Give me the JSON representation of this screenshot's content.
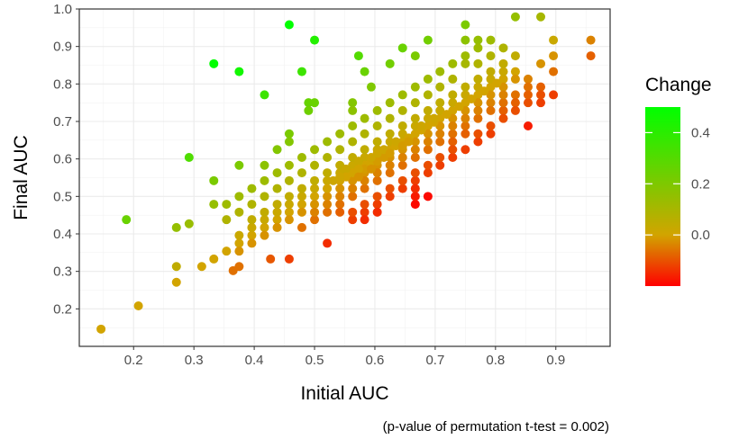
{
  "chart_data": {
    "type": "scatter",
    "title": "",
    "xlabel": "Initial AUC",
    "ylabel": "Final AUC",
    "caption": "(p-value of permutation t-test = 0.002)",
    "xlim": [
      0.11,
      0.99
    ],
    "ylim": [
      0.1,
      1.0
    ],
    "xticks": [
      0.2,
      0.3,
      0.4,
      0.5,
      0.6,
      0.7,
      0.8,
      0.9
    ],
    "yticks": [
      0.2,
      0.3,
      0.4,
      0.5,
      0.6,
      0.7,
      0.8,
      0.9,
      1.0
    ],
    "xtick_labels": [
      "0.2",
      "0.3",
      "0.4",
      "0.5",
      "0.6",
      "0.7",
      "0.8",
      "0.9"
    ],
    "ytick_labels": [
      "0.2",
      "0.3",
      "0.4",
      "0.5",
      "0.6",
      "0.7",
      "0.8",
      "0.9",
      "1.0"
    ],
    "grid": true,
    "legend": {
      "title": "Change",
      "position": "right",
      "min": -0.2,
      "max": 0.5,
      "ticks": [
        0.0,
        0.2,
        0.4
      ],
      "tick_labels": [
        "0.0",
        "0.2",
        "0.4"
      ],
      "colors": {
        "low": "#ff0000",
        "mid": "#d2a400",
        "high": "#00ff00"
      }
    },
    "points": [
      [
        0.146,
        0.146
      ],
      [
        0.208,
        0.208
      ],
      [
        0.271,
        0.271
      ],
      [
        0.271,
        0.313
      ],
      [
        0.313,
        0.313
      ],
      [
        0.333,
        0.333
      ],
      [
        0.375,
        0.313
      ],
      [
        0.365,
        0.302
      ],
      [
        0.427,
        0.333
      ],
      [
        0.458,
        0.333
      ],
      [
        0.521,
        0.375
      ],
      [
        0.188,
        0.438
      ],
      [
        0.271,
        0.417
      ],
      [
        0.292,
        0.427
      ],
      [
        0.292,
        0.604
      ],
      [
        0.333,
        0.854
      ],
      [
        0.375,
        0.833
      ],
      [
        0.417,
        0.771
      ],
      [
        0.458,
        0.958
      ],
      [
        0.5,
        0.917
      ],
      [
        0.479,
        0.833
      ],
      [
        0.49,
        0.75
      ],
      [
        0.5,
        0.75
      ],
      [
        0.49,
        0.729
      ],
      [
        0.333,
        0.542
      ],
      [
        0.375,
        0.583
      ],
      [
        0.417,
        0.583
      ],
      [
        0.438,
        0.625
      ],
      [
        0.458,
        0.646
      ],
      [
        0.458,
        0.667
      ],
      [
        0.563,
        0.75
      ],
      [
        0.563,
        0.729
      ],
      [
        0.573,
        0.875
      ],
      [
        0.583,
        0.833
      ],
      [
        0.594,
        0.792
      ],
      [
        0.625,
        0.854
      ],
      [
        0.646,
        0.896
      ],
      [
        0.667,
        0.875
      ],
      [
        0.688,
        0.917
      ],
      [
        0.75,
        0.958
      ],
      [
        0.75,
        0.917
      ],
      [
        0.771,
        0.917
      ],
      [
        0.833,
        0.979
      ],
      [
        0.875,
        0.979
      ],
      [
        0.896,
        0.917
      ],
      [
        0.958,
        0.917
      ],
      [
        0.958,
        0.875
      ],
      [
        0.896,
        0.833
      ],
      [
        0.896,
        0.771
      ],
      [
        0.875,
        0.792
      ],
      [
        0.875,
        0.75
      ],
      [
        0.854,
        0.75
      ],
      [
        0.854,
        0.688
      ],
      [
        0.813,
        0.729
      ],
      [
        0.792,
        0.75
      ],
      [
        0.771,
        0.771
      ],
      [
        0.75,
        0.75
      ],
      [
        0.729,
        0.729
      ],
      [
        0.708,
        0.708
      ],
      [
        0.688,
        0.688
      ],
      [
        0.667,
        0.667
      ],
      [
        0.646,
        0.646
      ],
      [
        0.625,
        0.625
      ],
      [
        0.604,
        0.604
      ],
      [
        0.583,
        0.583
      ],
      [
        0.563,
        0.563
      ],
      [
        0.542,
        0.542
      ],
      [
        0.521,
        0.521
      ],
      [
        0.5,
        0.5
      ],
      [
        0.479,
        0.479
      ],
      [
        0.458,
        0.458
      ],
      [
        0.438,
        0.438
      ],
      [
        0.417,
        0.417
      ],
      [
        0.396,
        0.396
      ],
      [
        0.375,
        0.375
      ],
      [
        0.354,
        0.354
      ],
      [
        0.333,
        0.479
      ],
      [
        0.354,
        0.479
      ],
      [
        0.375,
        0.5
      ],
      [
        0.396,
        0.521
      ],
      [
        0.417,
        0.542
      ],
      [
        0.438,
        0.563
      ],
      [
        0.458,
        0.583
      ],
      [
        0.479,
        0.604
      ],
      [
        0.5,
        0.625
      ],
      [
        0.521,
        0.646
      ],
      [
        0.542,
        0.667
      ],
      [
        0.563,
        0.688
      ],
      [
        0.583,
        0.708
      ],
      [
        0.604,
        0.729
      ],
      [
        0.625,
        0.75
      ],
      [
        0.646,
        0.771
      ],
      [
        0.667,
        0.792
      ],
      [
        0.688,
        0.813
      ],
      [
        0.708,
        0.833
      ],
      [
        0.729,
        0.854
      ],
      [
        0.75,
        0.875
      ],
      [
        0.771,
        0.854
      ],
      [
        0.792,
        0.875
      ],
      [
        0.813,
        0.854
      ],
      [
        0.833,
        0.833
      ],
      [
        0.813,
        0.813
      ],
      [
        0.792,
        0.792
      ],
      [
        0.771,
        0.75
      ],
      [
        0.75,
        0.729
      ],
      [
        0.729,
        0.708
      ],
      [
        0.708,
        0.688
      ],
      [
        0.688,
        0.667
      ],
      [
        0.667,
        0.646
      ],
      [
        0.646,
        0.625
      ],
      [
        0.625,
        0.604
      ],
      [
        0.604,
        0.583
      ],
      [
        0.583,
        0.563
      ],
      [
        0.563,
        0.542
      ],
      [
        0.542,
        0.521
      ],
      [
        0.521,
        0.5
      ],
      [
        0.5,
        0.479
      ],
      [
        0.479,
        0.458
      ],
      [
        0.458,
        0.438
      ],
      [
        0.438,
        0.417
      ],
      [
        0.417,
        0.396
      ],
      [
        0.396,
        0.375
      ],
      [
        0.375,
        0.354
      ],
      [
        0.375,
        0.396
      ],
      [
        0.396,
        0.417
      ],
      [
        0.417,
        0.438
      ],
      [
        0.438,
        0.458
      ],
      [
        0.458,
        0.479
      ],
      [
        0.479,
        0.5
      ],
      [
        0.5,
        0.521
      ],
      [
        0.521,
        0.542
      ],
      [
        0.542,
        0.563
      ],
      [
        0.563,
        0.583
      ],
      [
        0.583,
        0.604
      ],
      [
        0.604,
        0.625
      ],
      [
        0.625,
        0.646
      ],
      [
        0.646,
        0.667
      ],
      [
        0.667,
        0.688
      ],
      [
        0.688,
        0.708
      ],
      [
        0.708,
        0.729
      ],
      [
        0.729,
        0.75
      ],
      [
        0.75,
        0.771
      ],
      [
        0.771,
        0.792
      ],
      [
        0.792,
        0.813
      ],
      [
        0.813,
        0.792
      ],
      [
        0.833,
        0.771
      ],
      [
        0.854,
        0.813
      ],
      [
        0.875,
        0.854
      ],
      [
        0.896,
        0.875
      ],
      [
        0.833,
        0.875
      ],
      [
        0.813,
        0.896
      ],
      [
        0.792,
        0.917
      ],
      [
        0.771,
        0.896
      ],
      [
        0.75,
        0.854
      ],
      [
        0.729,
        0.813
      ],
      [
        0.708,
        0.792
      ],
      [
        0.688,
        0.771
      ],
      [
        0.667,
        0.75
      ],
      [
        0.646,
        0.729
      ],
      [
        0.625,
        0.708
      ],
      [
        0.604,
        0.688
      ],
      [
        0.583,
        0.667
      ],
      [
        0.563,
        0.646
      ],
      [
        0.542,
        0.625
      ],
      [
        0.521,
        0.604
      ],
      [
        0.5,
        0.583
      ],
      [
        0.479,
        0.563
      ],
      [
        0.458,
        0.542
      ],
      [
        0.438,
        0.521
      ],
      [
        0.417,
        0.5
      ],
      [
        0.396,
        0.479
      ],
      [
        0.375,
        0.458
      ],
      [
        0.354,
        0.438
      ],
      [
        0.396,
        0.438
      ],
      [
        0.417,
        0.458
      ],
      [
        0.438,
        0.479
      ],
      [
        0.458,
        0.5
      ],
      [
        0.479,
        0.521
      ],
      [
        0.5,
        0.542
      ],
      [
        0.521,
        0.563
      ],
      [
        0.542,
        0.583
      ],
      [
        0.563,
        0.604
      ],
      [
        0.583,
        0.625
      ],
      [
        0.604,
        0.646
      ],
      [
        0.625,
        0.667
      ],
      [
        0.646,
        0.688
      ],
      [
        0.667,
        0.708
      ],
      [
        0.688,
        0.729
      ],
      [
        0.708,
        0.75
      ],
      [
        0.729,
        0.771
      ],
      [
        0.75,
        0.792
      ],
      [
        0.771,
        0.813
      ],
      [
        0.792,
        0.833
      ],
      [
        0.813,
        0.833
      ],
      [
        0.833,
        0.813
      ],
      [
        0.854,
        0.792
      ],
      [
        0.875,
        0.771
      ],
      [
        0.854,
        0.771
      ],
      [
        0.833,
        0.75
      ],
      [
        0.813,
        0.75
      ],
      [
        0.792,
        0.729
      ],
      [
        0.771,
        0.708
      ],
      [
        0.75,
        0.688
      ],
      [
        0.729,
        0.667
      ],
      [
        0.708,
        0.646
      ],
      [
        0.688,
        0.625
      ],
      [
        0.667,
        0.604
      ],
      [
        0.646,
        0.583
      ],
      [
        0.625,
        0.563
      ],
      [
        0.604,
        0.542
      ],
      [
        0.583,
        0.521
      ],
      [
        0.563,
        0.5
      ],
      [
        0.542,
        0.479
      ],
      [
        0.521,
        0.458
      ],
      [
        0.5,
        0.438
      ],
      [
        0.479,
        0.417
      ],
      [
        0.563,
        0.438
      ],
      [
        0.583,
        0.458
      ],
      [
        0.604,
        0.479
      ],
      [
        0.625,
        0.5
      ],
      [
        0.646,
        0.521
      ],
      [
        0.667,
        0.542
      ],
      [
        0.688,
        0.563
      ],
      [
        0.708,
        0.583
      ],
      [
        0.729,
        0.604
      ],
      [
        0.75,
        0.625
      ],
      [
        0.771,
        0.646
      ],
      [
        0.792,
        0.667
      ],
      [
        0.813,
        0.708
      ],
      [
        0.833,
        0.729
      ],
      [
        0.667,
        0.479
      ],
      [
        0.688,
        0.5
      ],
      [
        0.667,
        0.5
      ],
      [
        0.667,
        0.521
      ],
      [
        0.583,
        0.438
      ],
      [
        0.604,
        0.458
      ],
      [
        0.729,
        0.646
      ],
      [
        0.75,
        0.667
      ],
      [
        0.771,
        0.667
      ],
      [
        0.792,
        0.688
      ],
      [
        0.729,
        0.625
      ],
      [
        0.708,
        0.604
      ],
      [
        0.688,
        0.583
      ],
      [
        0.667,
        0.563
      ],
      [
        0.646,
        0.542
      ],
      [
        0.625,
        0.521
      ],
      [
        0.604,
        0.5
      ],
      [
        0.583,
        0.479
      ],
      [
        0.563,
        0.458
      ],
      [
        0.542,
        0.458
      ],
      [
        0.521,
        0.479
      ],
      [
        0.5,
        0.458
      ],
      [
        0.542,
        0.5
      ],
      [
        0.521,
        0.521
      ],
      [
        0.563,
        0.521
      ],
      [
        0.583,
        0.542
      ],
      [
        0.604,
        0.563
      ],
      [
        0.625,
        0.583
      ],
      [
        0.646,
        0.604
      ],
      [
        0.667,
        0.625
      ],
      [
        0.688,
        0.646
      ],
      [
        0.708,
        0.667
      ],
      [
        0.729,
        0.688
      ],
      [
        0.75,
        0.708
      ],
      [
        0.771,
        0.729
      ],
      [
        0.792,
        0.771
      ],
      [
        0.813,
        0.771
      ],
      [
        0.583,
        0.583
      ],
      [
        0.583,
        0.573
      ],
      [
        0.594,
        0.594
      ],
      [
        0.594,
        0.573
      ],
      [
        0.573,
        0.594
      ],
      [
        0.573,
        0.573
      ],
      [
        0.604,
        0.594
      ],
      [
        0.594,
        0.604
      ],
      [
        0.615,
        0.615
      ],
      [
        0.615,
        0.604
      ],
      [
        0.563,
        0.563
      ],
      [
        0.552,
        0.573
      ],
      [
        0.573,
        0.552
      ],
      [
        0.604,
        0.615
      ],
      [
        0.615,
        0.625
      ],
      [
        0.625,
        0.615
      ],
      [
        0.635,
        0.635
      ],
      [
        0.552,
        0.552
      ],
      [
        0.542,
        0.552
      ],
      [
        0.531,
        0.542
      ],
      [
        0.635,
        0.646
      ],
      [
        0.646,
        0.635
      ],
      [
        0.656,
        0.656
      ],
      [
        0.656,
        0.646
      ],
      [
        0.677,
        0.677
      ],
      [
        0.677,
        0.688
      ],
      [
        0.698,
        0.698
      ],
      [
        0.698,
        0.708
      ],
      [
        0.719,
        0.719
      ],
      [
        0.74,
        0.74
      ],
      [
        0.76,
        0.76
      ],
      [
        0.781,
        0.781
      ],
      [
        0.802,
        0.802
      ]
    ]
  }
}
